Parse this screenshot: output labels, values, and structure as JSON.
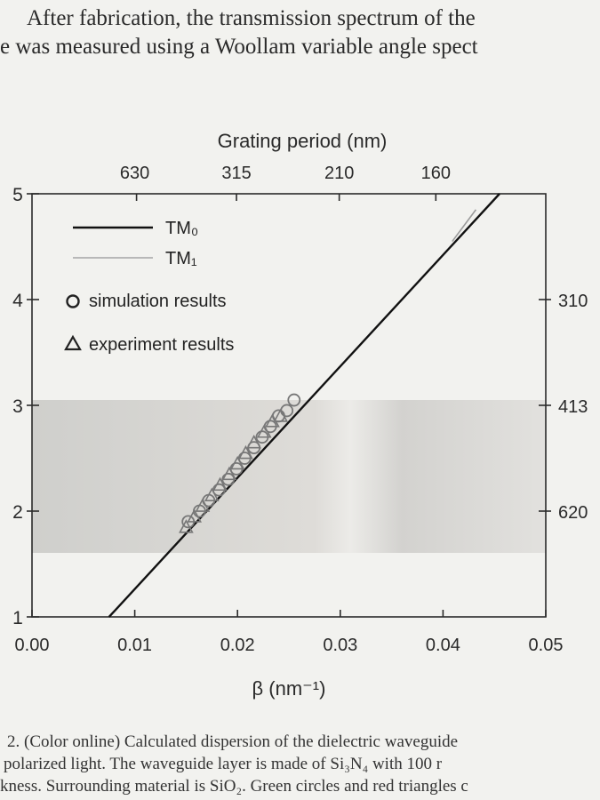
{
  "page": {
    "body_line1": "After fabrication, the transmission spectrum of the",
    "body_line1_faded_word": "transmission spectrum",
    "body_line2": "e was measured using a Woollam variable angle spect",
    "caption_line1": "2. (Color online) Calculated dispersion of the dielectric waveguide",
    "caption_line2": "polarized light. The waveguide layer is made of Si₃N₄ with 100 r",
    "caption_line3": "kness. Surrounding material is SiO₂. Green circles and red triangles c"
  },
  "chart_data": {
    "type": "line",
    "title": "",
    "xlabel": "β (nm⁻¹)",
    "ylabel": "",
    "top_axis_label": "Grating period (nm)",
    "xlim": [
      0.0,
      0.05
    ],
    "ylim": [
      1,
      5
    ],
    "x_ticks": [
      "0.00",
      "0.01",
      "0.02",
      "0.03",
      "0.04",
      "0.05"
    ],
    "x_tick_values": [
      0.0,
      0.01,
      0.02,
      0.03,
      0.04,
      0.05
    ],
    "y_ticks": [
      "1",
      "2",
      "3",
      "4",
      "5"
    ],
    "y_tick_values": [
      1,
      2,
      3,
      4,
      5
    ],
    "top_ticks": [
      "630",
      "315",
      "210",
      "160"
    ],
    "top_tick_values": [
      0.01,
      0.0199,
      0.0299,
      0.0393
    ],
    "right_ticks": [
      "310",
      "413",
      "620"
    ],
    "right_tick_values": [
      4.0,
      3.0,
      2.0
    ],
    "shaded_band": [
      1.6,
      3.1
    ],
    "legend": [
      {
        "label": "TM₀",
        "style": "line-dark"
      },
      {
        "label": "TM₁",
        "style": "line-light"
      },
      {
        "label": "simulation results",
        "style": "circle"
      },
      {
        "label": "experiment results",
        "style": "triangle"
      }
    ],
    "series": [
      {
        "name": "TM₀",
        "color": "#111111",
        "x": [
          0.0075,
          0.0455
        ],
        "y": [
          1.0,
          5.0
        ]
      },
      {
        "name": "TM₁",
        "color": "#9a9a9a",
        "x": [
          0.0409,
          0.0432
        ],
        "y": [
          4.55,
          4.85
        ]
      },
      {
        "name": "simulation results",
        "color": "#777777",
        "x": [
          0.0152,
          0.0163,
          0.0172,
          0.0182,
          0.0191,
          0.0199,
          0.0207,
          0.0216,
          0.0224,
          0.0232,
          0.024,
          0.0248,
          0.0255
        ],
        "y": [
          1.9,
          2.0,
          2.1,
          2.2,
          2.3,
          2.4,
          2.5,
          2.6,
          2.7,
          2.8,
          2.9,
          2.95,
          3.05
        ]
      },
      {
        "name": "experiment results",
        "color": "#777777",
        "x": [
          0.015,
          0.0158,
          0.0166,
          0.0175,
          0.0183,
          0.0192,
          0.02,
          0.0208,
          0.0216,
          0.0226,
          0.0234,
          0.0242
        ],
        "y": [
          1.85,
          1.95,
          2.05,
          2.15,
          2.25,
          2.35,
          2.45,
          2.55,
          2.65,
          2.75,
          2.85,
          2.9
        ]
      }
    ]
  }
}
